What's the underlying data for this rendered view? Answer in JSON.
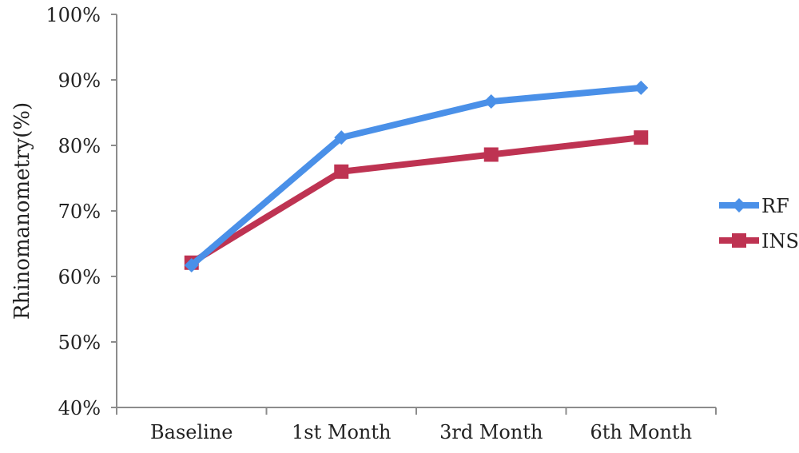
{
  "chart_data": {
    "type": "line",
    "title": "",
    "xlabel": "",
    "ylabel": "Rhinomanometry(%)",
    "categories": [
      "Baseline",
      "1st Month",
      "3rd Month",
      "6th Month"
    ],
    "ylim": [
      40,
      100
    ],
    "yticks": [
      40,
      50,
      60,
      70,
      80,
      90,
      100
    ],
    "ytick_labels": [
      "40%",
      "50%",
      "60%",
      "70%",
      "80%",
      "90%",
      "100%"
    ],
    "grid": false,
    "legend_position": "right",
    "series": [
      {
        "name": "RF",
        "values": [
          61.7,
          81.2,
          86.7,
          88.8
        ],
        "color": "#4a90e8",
        "marker": "diamond"
      },
      {
        "name": "INS",
        "values": [
          62.1,
          76.0,
          78.6,
          81.2
        ],
        "color": "#be3352",
        "marker": "square"
      }
    ]
  }
}
